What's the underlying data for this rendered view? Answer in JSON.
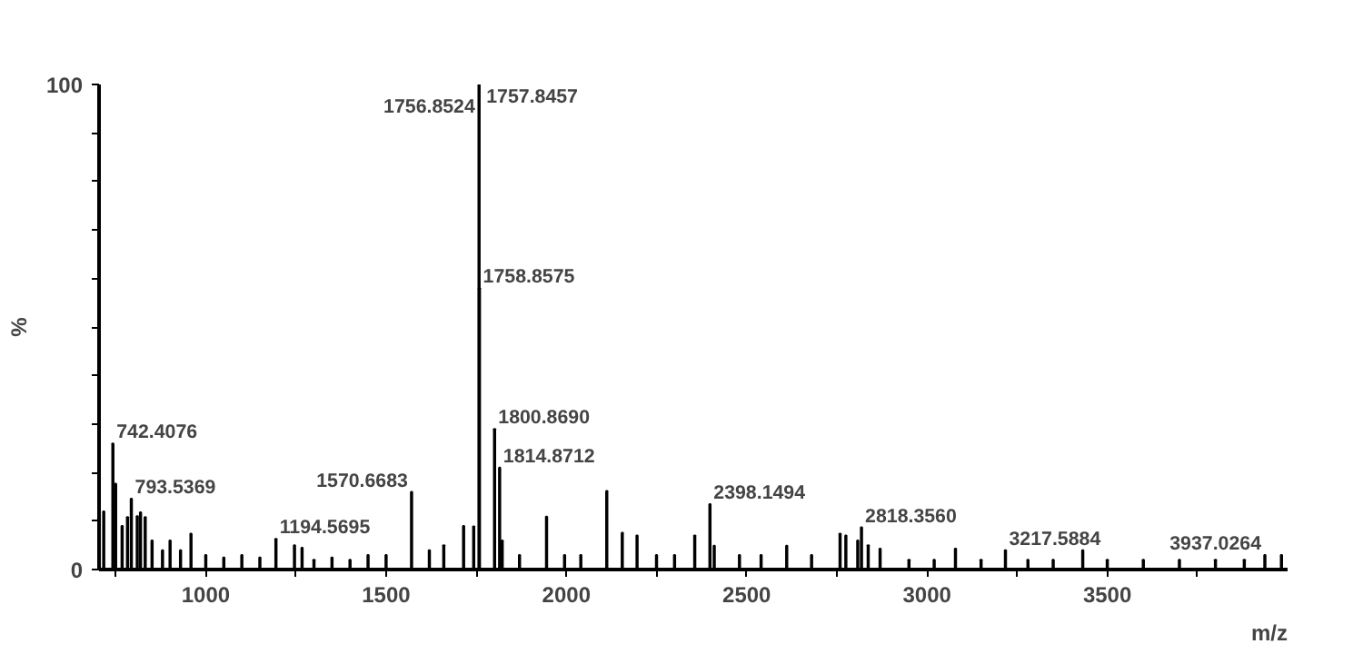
{
  "chart_data": {
    "type": "bar",
    "xlabel": "m/z",
    "ylabel": "%",
    "color": "#000000",
    "x": [
      717,
      742.4076,
      750,
      768,
      783,
      793.5369,
      810,
      819,
      832,
      851,
      880,
      901,
      930,
      959,
      1000,
      1050,
      1100,
      1150,
      1194.5695,
      1246,
      1267,
      1300,
      1350,
      1400,
      1450,
      1500,
      1570.6683,
      1620,
      1660,
      1715,
      1743,
      1756.8524,
      1757.8457,
      1758.8575,
      1800.869,
      1814.8712,
      1822,
      1870,
      1945,
      1995,
      2040,
      2112,
      2155,
      2196,
      2250,
      2300,
      2356,
      2398.1494,
      2410,
      2480,
      2540,
      2611,
      2680,
      2759,
      2775,
      2808,
      2818.356,
      2837,
      2870,
      2950,
      3020,
      3079,
      3150,
      3217.5884,
      3280,
      3350,
      3432,
      3500,
      3600,
      3700,
      3800,
      3880,
      3937.0264,
      3983
    ],
    "values": [
      12,
      26,
      17.7,
      9,
      10.8,
      14.6,
      11,
      11.8,
      10.8,
      6,
      4,
      6,
      4,
      7.4,
      3,
      2.5,
      3,
      2.5,
      6.3,
      5,
      4.5,
      2,
      2.5,
      2,
      3,
      3,
      16,
      4,
      5,
      9,
      8.9,
      null,
      100,
      58,
      29,
      21,
      6,
      3,
      10.9,
      3,
      3,
      16.2,
      7.6,
      7,
      3,
      3,
      7,
      13.5,
      4.9,
      3,
      3,
      4.9,
      3,
      7.4,
      7,
      6,
      8.7,
      5,
      4.3,
      2,
      2,
      4.3,
      2,
      4,
      2,
      2,
      4,
      2,
      2,
      2,
      2,
      2,
      3,
      3
    ],
    "xlim": [
      704,
      4000
    ],
    "xticks": [
      {
        "value": 750,
        "label": null
      },
      1000,
      {
        "value": 1250,
        "label": null
      },
      1500,
      {
        "value": 1750,
        "label": null
      },
      2000,
      {
        "value": 2250,
        "label": null
      },
      2500,
      {
        "value": 2750,
        "label": null
      },
      3000,
      {
        "value": 3250,
        "label": null
      },
      3500,
      {
        "value": 3750,
        "label": null
      }
    ],
    "ylim": [
      0,
      100
    ],
    "yticks": [
      0,
      {
        "value": 10,
        "label": null
      },
      {
        "value": 20,
        "label": null
      },
      {
        "value": 30,
        "label": null
      },
      {
        "value": 40,
        "label": null
      },
      {
        "value": 50,
        "label": null
      },
      {
        "value": 60,
        "label": null
      },
      {
        "value": 70,
        "label": null
      },
      {
        "value": 80,
        "label": null
      },
      {
        "value": 90,
        "label": null
      },
      100
    ],
    "grid": false,
    "annotations": [
      {
        "text": "742.4076",
        "x": 742.4076,
        "y": 26
      },
      {
        "text": "793.5369",
        "x": 793.5369,
        "y": 14.6
      },
      {
        "text": "1194.5695",
        "x": 1194.5695,
        "y": 6.3
      },
      {
        "text": "1570.6683",
        "x": 1570.6683,
        "y": 16
      },
      {
        "text": "1756.8524",
        "x": 1756.8524,
        "y": 93
      },
      {
        "text": "1757.8457",
        "x": 1757.8457,
        "y": 100
      },
      {
        "text": "1758.8575",
        "x": 1758.8575,
        "y": 58
      },
      {
        "text": "1800.8690",
        "x": 1800.869,
        "y": 29
      },
      {
        "text": "1814.8712",
        "x": 1814.8712,
        "y": 21
      },
      {
        "text": "2398.1494",
        "x": 2398.1494,
        "y": 13.5
      },
      {
        "text": "2818.3560",
        "x": 2818.356,
        "y": 8.7
      },
      {
        "text": "3217.5884",
        "x": 3217.5884,
        "y": 4
      },
      {
        "text": "3937.0264",
        "x": 3937.0264,
        "y": 3
      }
    ]
  }
}
